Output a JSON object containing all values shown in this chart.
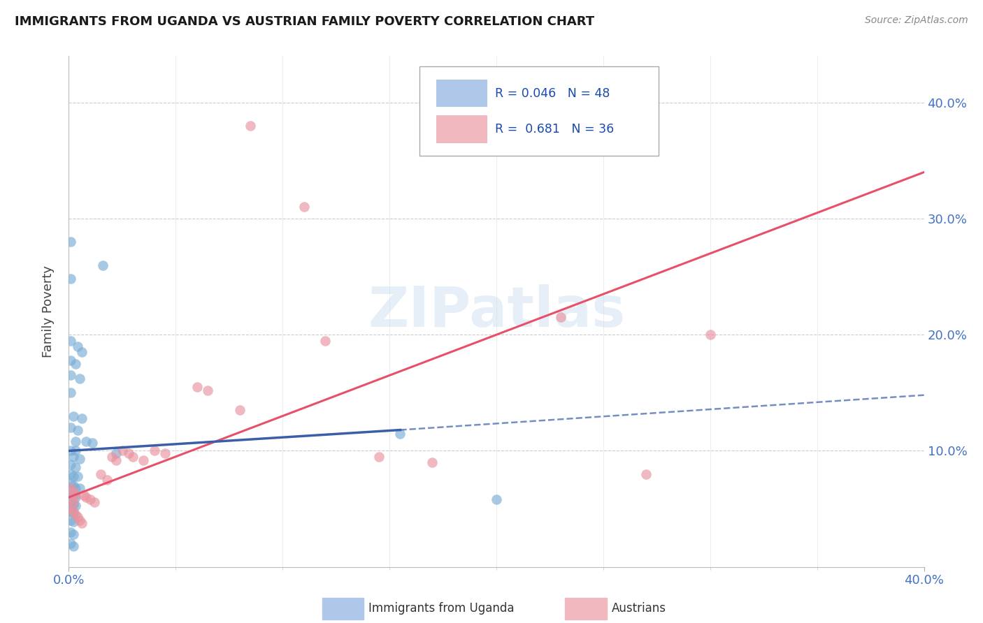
{
  "title": "IMMIGRANTS FROM UGANDA VS AUSTRIAN FAMILY POVERTY CORRELATION CHART",
  "source": "Source: ZipAtlas.com",
  "ylabel": "Family Poverty",
  "watermark": "ZIPatlas",
  "xlim": [
    0.0,
    0.4
  ],
  "ylim": [
    0.0,
    0.44
  ],
  "blue_scatter": [
    [
      0.001,
      0.28
    ],
    [
      0.001,
      0.248
    ],
    [
      0.016,
      0.26
    ],
    [
      0.001,
      0.195
    ],
    [
      0.004,
      0.19
    ],
    [
      0.006,
      0.185
    ],
    [
      0.001,
      0.178
    ],
    [
      0.003,
      0.175
    ],
    [
      0.001,
      0.165
    ],
    [
      0.005,
      0.162
    ],
    [
      0.001,
      0.15
    ],
    [
      0.002,
      0.13
    ],
    [
      0.006,
      0.128
    ],
    [
      0.001,
      0.12
    ],
    [
      0.004,
      0.118
    ],
    [
      0.003,
      0.108
    ],
    [
      0.008,
      0.108
    ],
    [
      0.011,
      0.107
    ],
    [
      0.001,
      0.1
    ],
    [
      0.003,
      0.1
    ],
    [
      0.002,
      0.095
    ],
    [
      0.005,
      0.093
    ],
    [
      0.001,
      0.088
    ],
    [
      0.003,
      0.086
    ],
    [
      0.001,
      0.08
    ],
    [
      0.002,
      0.078
    ],
    [
      0.004,
      0.078
    ],
    [
      0.001,
      0.072
    ],
    [
      0.002,
      0.07
    ],
    [
      0.003,
      0.068
    ],
    [
      0.005,
      0.068
    ],
    [
      0.001,
      0.063
    ],
    [
      0.002,
      0.062
    ],
    [
      0.003,
      0.06
    ],
    [
      0.001,
      0.055
    ],
    [
      0.002,
      0.054
    ],
    [
      0.003,
      0.053
    ],
    [
      0.001,
      0.048
    ],
    [
      0.002,
      0.047
    ],
    [
      0.001,
      0.04
    ],
    [
      0.002,
      0.039
    ],
    [
      0.001,
      0.03
    ],
    [
      0.002,
      0.028
    ],
    [
      0.001,
      0.02
    ],
    [
      0.002,
      0.018
    ],
    [
      0.022,
      0.098
    ],
    [
      0.155,
      0.115
    ],
    [
      0.2,
      0.058
    ]
  ],
  "pink_scatter": [
    [
      0.001,
      0.068
    ],
    [
      0.002,
      0.065
    ],
    [
      0.003,
      0.062
    ],
    [
      0.001,
      0.058
    ],
    [
      0.002,
      0.056
    ],
    [
      0.001,
      0.05
    ],
    [
      0.002,
      0.048
    ],
    [
      0.003,
      0.045
    ],
    [
      0.004,
      0.043
    ],
    [
      0.005,
      0.04
    ],
    [
      0.006,
      0.038
    ],
    [
      0.007,
      0.062
    ],
    [
      0.008,
      0.06
    ],
    [
      0.01,
      0.058
    ],
    [
      0.012,
      0.056
    ],
    [
      0.015,
      0.08
    ],
    [
      0.018,
      0.075
    ],
    [
      0.02,
      0.095
    ],
    [
      0.022,
      0.092
    ],
    [
      0.025,
      0.1
    ],
    [
      0.028,
      0.098
    ],
    [
      0.03,
      0.095
    ],
    [
      0.035,
      0.092
    ],
    [
      0.04,
      0.1
    ],
    [
      0.045,
      0.098
    ],
    [
      0.06,
      0.155
    ],
    [
      0.065,
      0.152
    ],
    [
      0.08,
      0.135
    ],
    [
      0.12,
      0.195
    ],
    [
      0.145,
      0.095
    ],
    [
      0.17,
      0.09
    ],
    [
      0.23,
      0.215
    ],
    [
      0.27,
      0.08
    ],
    [
      0.3,
      0.2
    ],
    [
      0.085,
      0.38
    ],
    [
      0.11,
      0.31
    ]
  ],
  "blue_line_solid": {
    "x": [
      0.0,
      0.155
    ],
    "y": [
      0.1,
      0.118
    ]
  },
  "blue_line_dashed": {
    "x": [
      0.155,
      0.4
    ],
    "y": [
      0.118,
      0.148
    ]
  },
  "pink_line": {
    "x": [
      0.0,
      0.4
    ],
    "y": [
      0.06,
      0.34
    ]
  },
  "blue_color": "#7aadd4",
  "pink_color": "#e8929e",
  "blue_line_color": "#3a5fa8",
  "pink_line_color": "#e8506a",
  "scatter_alpha": 0.65,
  "scatter_size": 110,
  "background_color": "#ffffff",
  "grid_color": "#cccccc"
}
